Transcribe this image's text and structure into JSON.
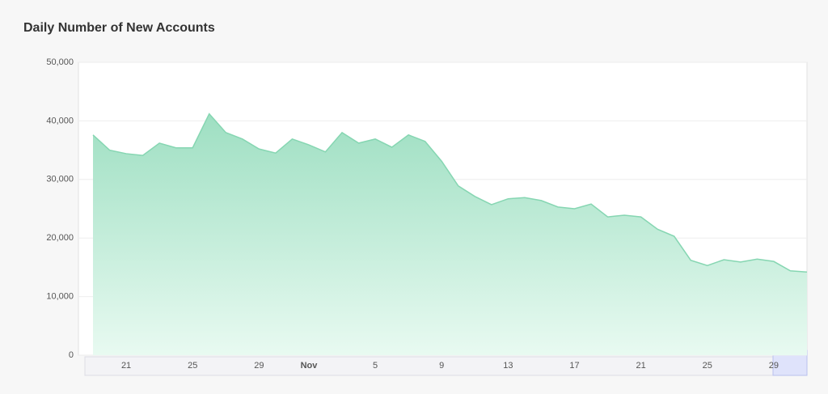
{
  "chart_data": {
    "type": "area",
    "title": "Daily Number of New Accounts",
    "categories": [
      null,
      null,
      "21",
      null,
      null,
      null,
      "25",
      null,
      null,
      null,
      "29",
      null,
      null,
      "Nov",
      null,
      null,
      null,
      "5",
      null,
      null,
      null,
      "9",
      null,
      null,
      null,
      "13",
      null,
      null,
      null,
      "17",
      null,
      null,
      null,
      "21",
      null,
      null,
      null,
      "25",
      null,
      null,
      null,
      "29",
      null,
      null
    ],
    "series": [
      {
        "color": "#86d6b2",
        "values": [
          37600,
          35000,
          34400,
          34100,
          36200,
          35400,
          35400,
          41200,
          38000,
          36900,
          35200,
          34500,
          36900,
          35900,
          34700,
          38000,
          36200,
          36900,
          35500,
          37600,
          36500,
          33100,
          28900,
          27100,
          25700,
          26700,
          26900,
          26400,
          25300,
          25000,
          25800,
          23600,
          23900,
          23600,
          21500,
          20300,
          16200,
          15300,
          16300,
          15900,
          16400,
          16000,
          14400,
          14200
        ]
      }
    ],
    "ylim": [
      0,
      50000
    ],
    "yticks": [
      0,
      {
        "value": 10000,
        "label": "10,000"
      },
      {
        "value": 20000,
        "label": "20,000"
      },
      {
        "value": 30000,
        "label": "30,000"
      },
      {
        "value": 40000,
        "label": "40,000"
      },
      {
        "value": 50000,
        "label": "50,000"
      }
    ],
    "grid": true
  }
}
